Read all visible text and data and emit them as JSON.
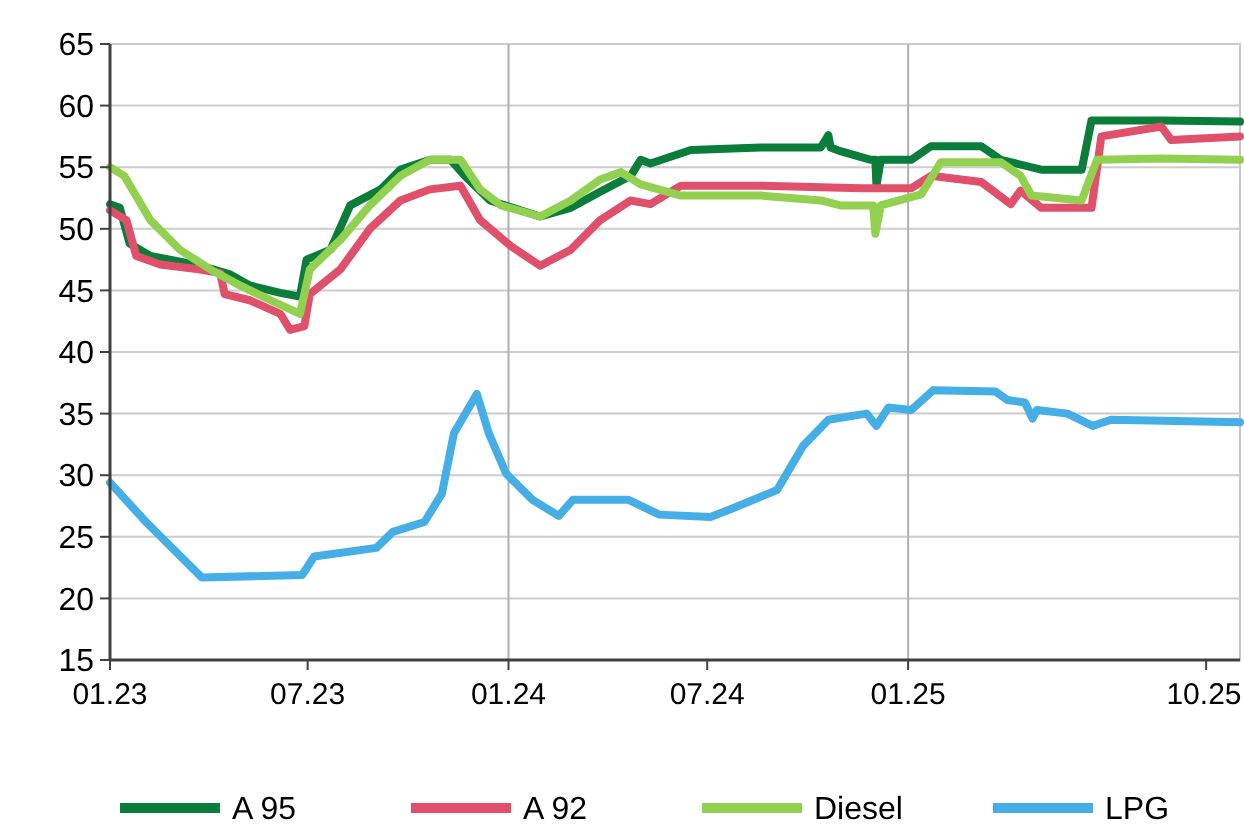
{
  "chart_data": {
    "type": "line",
    "xlim": [
      "2023-01-01",
      "2025-11-01"
    ],
    "ylim": [
      15,
      65
    ],
    "xticks": [
      {
        "value": "2023-01-01",
        "label": "01.23"
      },
      {
        "value": "2023-07-01",
        "label": "07.23"
      },
      {
        "value": "2024-01-01",
        "label": "01.24"
      },
      {
        "value": "2024-07-01",
        "label": "07.24"
      },
      {
        "value": "2025-01-01",
        "label": "01.25"
      },
      {
        "value": "2025-10-01",
        "label": "10.25"
      }
    ],
    "yticks": [
      15,
      20,
      25,
      30,
      35,
      40,
      45,
      50,
      55,
      60,
      65
    ],
    "grid": "y",
    "legend": "bottom",
    "line_style": "solid",
    "marker": "none",
    "ref_lines": [
      {
        "axis": "x",
        "value": "2024-01-01",
        "label": null,
        "color": "#b0b0b0"
      },
      {
        "axis": "x",
        "value": "2025-01-01",
        "label": null,
        "color": "#b0b0b0"
      }
    ],
    "series": [
      {
        "name": "A 95",
        "color": "#0b7d3b",
        "x": [
          "2023-01-01",
          "2023-01-10",
          "2023-01-19",
          "2023-02-07",
          "2023-03-25",
          "2023-04-21",
          "2023-05-09",
          "2023-06-06",
          "2023-06-24",
          "2023-06-30",
          "2023-07-22",
          "2023-08-09",
          "2023-09-06",
          "2023-09-24",
          "2023-10-21",
          "2023-11-09",
          "2023-11-22",
          "2023-12-15",
          "2024-01-12",
          "2024-01-30",
          "2024-02-27",
          "2024-03-25",
          "2024-04-22",
          "2024-05-01",
          "2024-05-10",
          "2024-06-16",
          "2024-08-19",
          "2024-10-13",
          "2024-10-20",
          "2024-10-22",
          "2024-10-31",
          "2024-11-28",
          "2024-12-02",
          "2024-12-03",
          "2024-12-07",
          "2024-12-25",
          "2025-01-04",
          "2025-01-22",
          "2025-03-09",
          "2025-03-27",
          "2025-05-03",
          "2025-06-09",
          "2025-06-18",
          "2025-08-21",
          "2025-11-01"
        ],
        "values": [
          52,
          51.7,
          48.8,
          47.8,
          47,
          46.3,
          45.4,
          44.8,
          44.5,
          47.5,
          48.3,
          51.9,
          53.2,
          54.8,
          55.6,
          55.6,
          54.3,
          52.3,
          51.5,
          51,
          51.7,
          53,
          54.3,
          55.6,
          55.3,
          56.4,
          56.6,
          56.6,
          57.6,
          56.6,
          56.3,
          55.6,
          55.6,
          53.5,
          55.6,
          55.6,
          55.6,
          56.7,
          56.7,
          55.6,
          54.8,
          54.8,
          58.8,
          58.8,
          58.7
        ]
      },
      {
        "name": "A 92",
        "color": "#e0506a",
        "x": [
          "2023-01-01",
          "2023-01-16",
          "2023-01-25",
          "2023-02-16",
          "2023-03-25",
          "2023-04-12",
          "2023-04-16",
          "2023-05-09",
          "2023-06-06",
          "2023-06-15",
          "2023-06-28",
          "2023-07-03",
          "2023-07-31",
          "2023-08-27",
          "2023-09-24",
          "2023-10-21",
          "2023-11-18",
          "2023-12-06",
          "2024-01-03",
          "2024-01-30",
          "2024-02-27",
          "2024-03-25",
          "2024-04-22",
          "2024-05-10",
          "2024-06-07",
          "2024-08-19",
          "2024-11-19",
          "2025-01-04",
          "2025-01-22",
          "2025-03-09",
          "2025-04-05",
          "2025-04-14",
          "2025-05-03",
          "2025-06-18",
          "2025-06-27",
          "2025-08-21",
          "2025-08-30",
          "2025-11-01"
        ],
        "values": [
          51.5,
          50.7,
          47.8,
          47.1,
          46.7,
          46.4,
          44.7,
          44.2,
          43.1,
          41.8,
          42.1,
          44.7,
          46.7,
          50,
          52.3,
          53.2,
          53.5,
          50.7,
          48.6,
          47,
          48.3,
          50.7,
          52.3,
          52,
          53.5,
          53.5,
          53.3,
          53.3,
          54.3,
          53.8,
          52,
          53.1,
          51.7,
          51.7,
          57.5,
          58.3,
          57.2,
          57.5
        ]
      },
      {
        "name": "Diesel",
        "color": "#92d050",
        "x": [
          "2023-01-01",
          "2023-01-14",
          "2023-02-07",
          "2023-03-06",
          "2023-04-03",
          "2023-04-30",
          "2023-05-28",
          "2023-06-24",
          "2023-07-03",
          "2023-07-31",
          "2023-08-27",
          "2023-09-24",
          "2023-10-21",
          "2023-11-18",
          "2023-12-06",
          "2023-12-25",
          "2024-01-30",
          "2024-02-27",
          "2024-03-25",
          "2024-04-13",
          "2024-05-01",
          "2024-06-07",
          "2024-08-19",
          "2024-10-13",
          "2024-10-31",
          "2024-11-30",
          "2024-12-02",
          "2024-12-07",
          "2025-01-13",
          "2025-01-31",
          "2025-03-27",
          "2025-04-14",
          "2025-04-24",
          "2025-06-09",
          "2025-06-23",
          "2025-08-21",
          "2025-11-01"
        ],
        "values": [
          55,
          54.3,
          50.7,
          48.3,
          46.7,
          45.4,
          44.2,
          43.1,
          46.7,
          49.1,
          51.9,
          54.3,
          55.6,
          55.6,
          53.2,
          51.9,
          51,
          52.3,
          54,
          54.6,
          53.6,
          52.7,
          52.7,
          52.3,
          51.9,
          51.9,
          49.6,
          51.9,
          52.8,
          55.4,
          55.4,
          54.3,
          52.7,
          52.3,
          55.6,
          55.7,
          55.6
        ]
      },
      {
        "name": "LPG",
        "color": "#45aee6",
        "x": [
          "2023-01-01",
          "2023-02-03",
          "2023-03-26",
          "2023-06-26",
          "2023-07-07",
          "2023-09-02",
          "2023-09-17",
          "2023-10-16",
          "2023-11-01",
          "2023-11-12",
          "2023-12-03",
          "2023-12-14",
          "2023-12-30",
          "2024-01-23",
          "2024-02-16",
          "2024-02-29",
          "2024-04-20",
          "2024-05-18",
          "2024-07-04",
          "2024-07-24",
          "2024-09-03",
          "2024-09-27",
          "2024-10-20",
          "2024-11-24",
          "2024-12-03",
          "2024-12-14",
          "2025-01-04",
          "2025-01-24",
          "2025-03-22",
          "2025-04-02",
          "2025-04-18",
          "2025-04-25",
          "2025-04-29",
          "2025-05-27",
          "2025-06-19",
          "2025-07-06",
          "2025-11-01"
        ],
        "values": [
          29.4,
          26.2,
          21.7,
          21.9,
          23.4,
          24.1,
          25.4,
          26.2,
          28.5,
          33.4,
          36.6,
          33.4,
          30.1,
          28,
          26.7,
          28,
          28,
          26.8,
          26.6,
          27.3,
          28.8,
          32.4,
          34.5,
          35,
          34,
          35.5,
          35.3,
          36.9,
          36.8,
          36.1,
          35.9,
          34.6,
          35.3,
          35,
          34,
          34.5,
          34.3
        ]
      }
    ]
  }
}
